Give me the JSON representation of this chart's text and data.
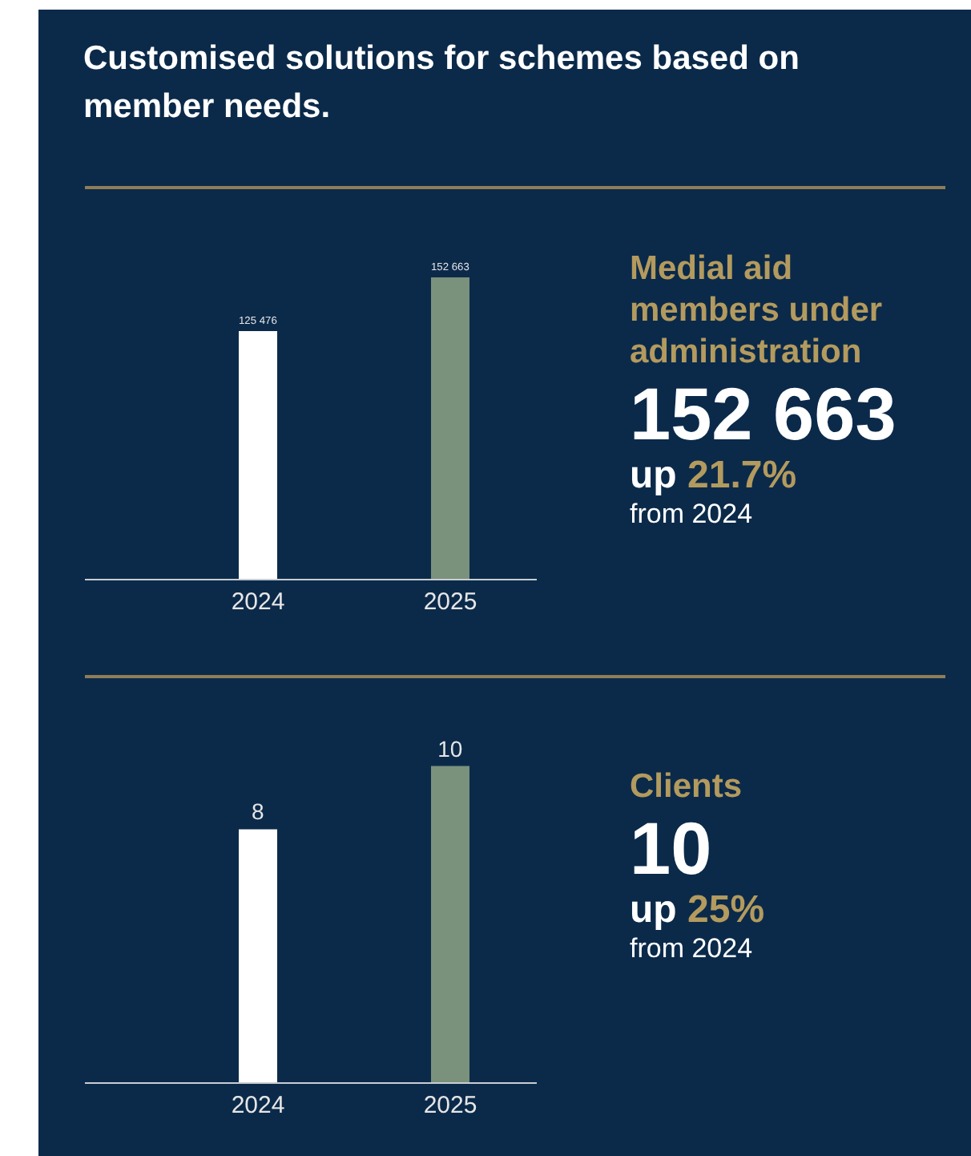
{
  "chart_data": [
    {
      "type": "other",
      "title": "Customised solutions for schemes based on member needs."
    },
    {
      "type": "bar",
      "categories": [
        "2024",
        "2025"
      ],
      "values": [
        125476,
        152663
      ],
      "colors": [
        "#ffffff",
        "#7a917c"
      ],
      "value_labels": [
        "125 476",
        "152 663"
      ]
    },
    {
      "type": "other",
      "title": "Medial aid members under administration",
      "annotations": [
        "152 663",
        "up 21.7%",
        "from 2024"
      ]
    },
    {
      "type": "bar",
      "categories": [
        "2024",
        "2025"
      ],
      "values": [
        8,
        10
      ],
      "colors": [
        "#ffffff",
        "#7a917c"
      ],
      "value_labels": [
        "8",
        "10"
      ]
    },
    {
      "type": "other",
      "title": "Clients",
      "annotations": [
        "10",
        "up 25%",
        "from 2024"
      ]
    }
  ]
}
